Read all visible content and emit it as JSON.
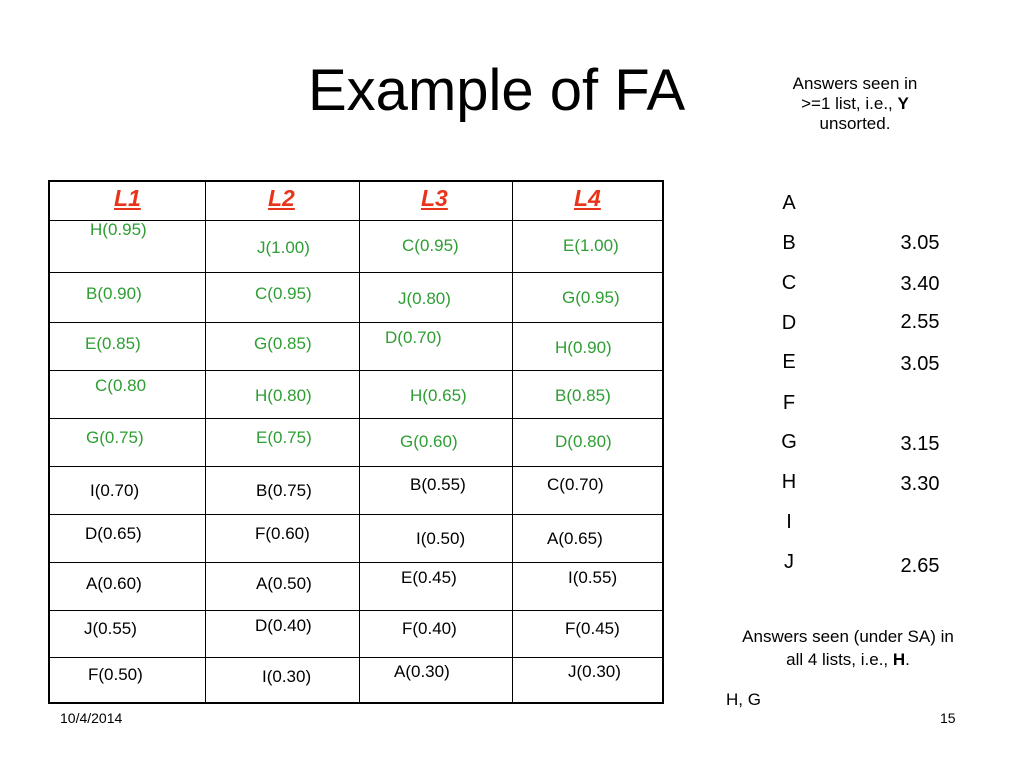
{
  "title": "Example of FA",
  "note_top": {
    "line1": "Answers seen in",
    "line2_prefix": ">=1 list, i.e., ",
    "line2_bold": "Y",
    "line3": "unsorted."
  },
  "table": {
    "headers": [
      "L1",
      "L2",
      "L3",
      "L4"
    ],
    "rows": [
      [
        "H(0.95)",
        "J(1.00)",
        "C(0.95)",
        "E(1.00)"
      ],
      [
        "B(0.90)",
        "C(0.95)",
        "J(0.80)",
        "G(0.95)"
      ],
      [
        "E(0.85)",
        "G(0.85)",
        "D(0.70)",
        "H(0.90)"
      ],
      [
        "C(0.80",
        "H(0.80)",
        "H(0.65)",
        "B(0.85)"
      ],
      [
        "G(0.75)",
        "E(0.75)",
        "G(0.60)",
        "D(0.80)"
      ],
      [
        "I(0.70)",
        "B(0.75)",
        "B(0.55)",
        "C(0.70)"
      ],
      [
        "D(0.65)",
        "F(0.60)",
        "I(0.50)",
        "A(0.65)"
      ],
      [
        "A(0.60)",
        "A(0.50)",
        "E(0.45)",
        "I(0.55)"
      ],
      [
        "J(0.55)",
        "D(0.40)",
        "F(0.40)",
        "F(0.45)"
      ],
      [
        "F(0.50)",
        "I(0.30)",
        "A(0.30)",
        "J(0.30)"
      ]
    ],
    "green_rows": 5
  },
  "answers": [
    {
      "letter": "A",
      "score": ""
    },
    {
      "letter": "B",
      "score": "3.05"
    },
    {
      "letter": "C",
      "score": "3.40"
    },
    {
      "letter": "D",
      "score": "2.55"
    },
    {
      "letter": "E",
      "score": "3.05"
    },
    {
      "letter": "F",
      "score": ""
    },
    {
      "letter": "G",
      "score": "3.15"
    },
    {
      "letter": "H",
      "score": "3.30"
    },
    {
      "letter": "I",
      "score": ""
    },
    {
      "letter": "J",
      "score": "2.65"
    }
  ],
  "note_bottom": {
    "line1": "Answers seen (under SA) in",
    "line2_prefix": "all 4 lists, i.e., ",
    "line2_bold": "H",
    "line2_suffix": "."
  },
  "hg": "H, G",
  "footer": {
    "date": "10/4/2014",
    "page": "15"
  },
  "colors": {
    "header": "#e8341a",
    "green": "#2e9e33"
  }
}
